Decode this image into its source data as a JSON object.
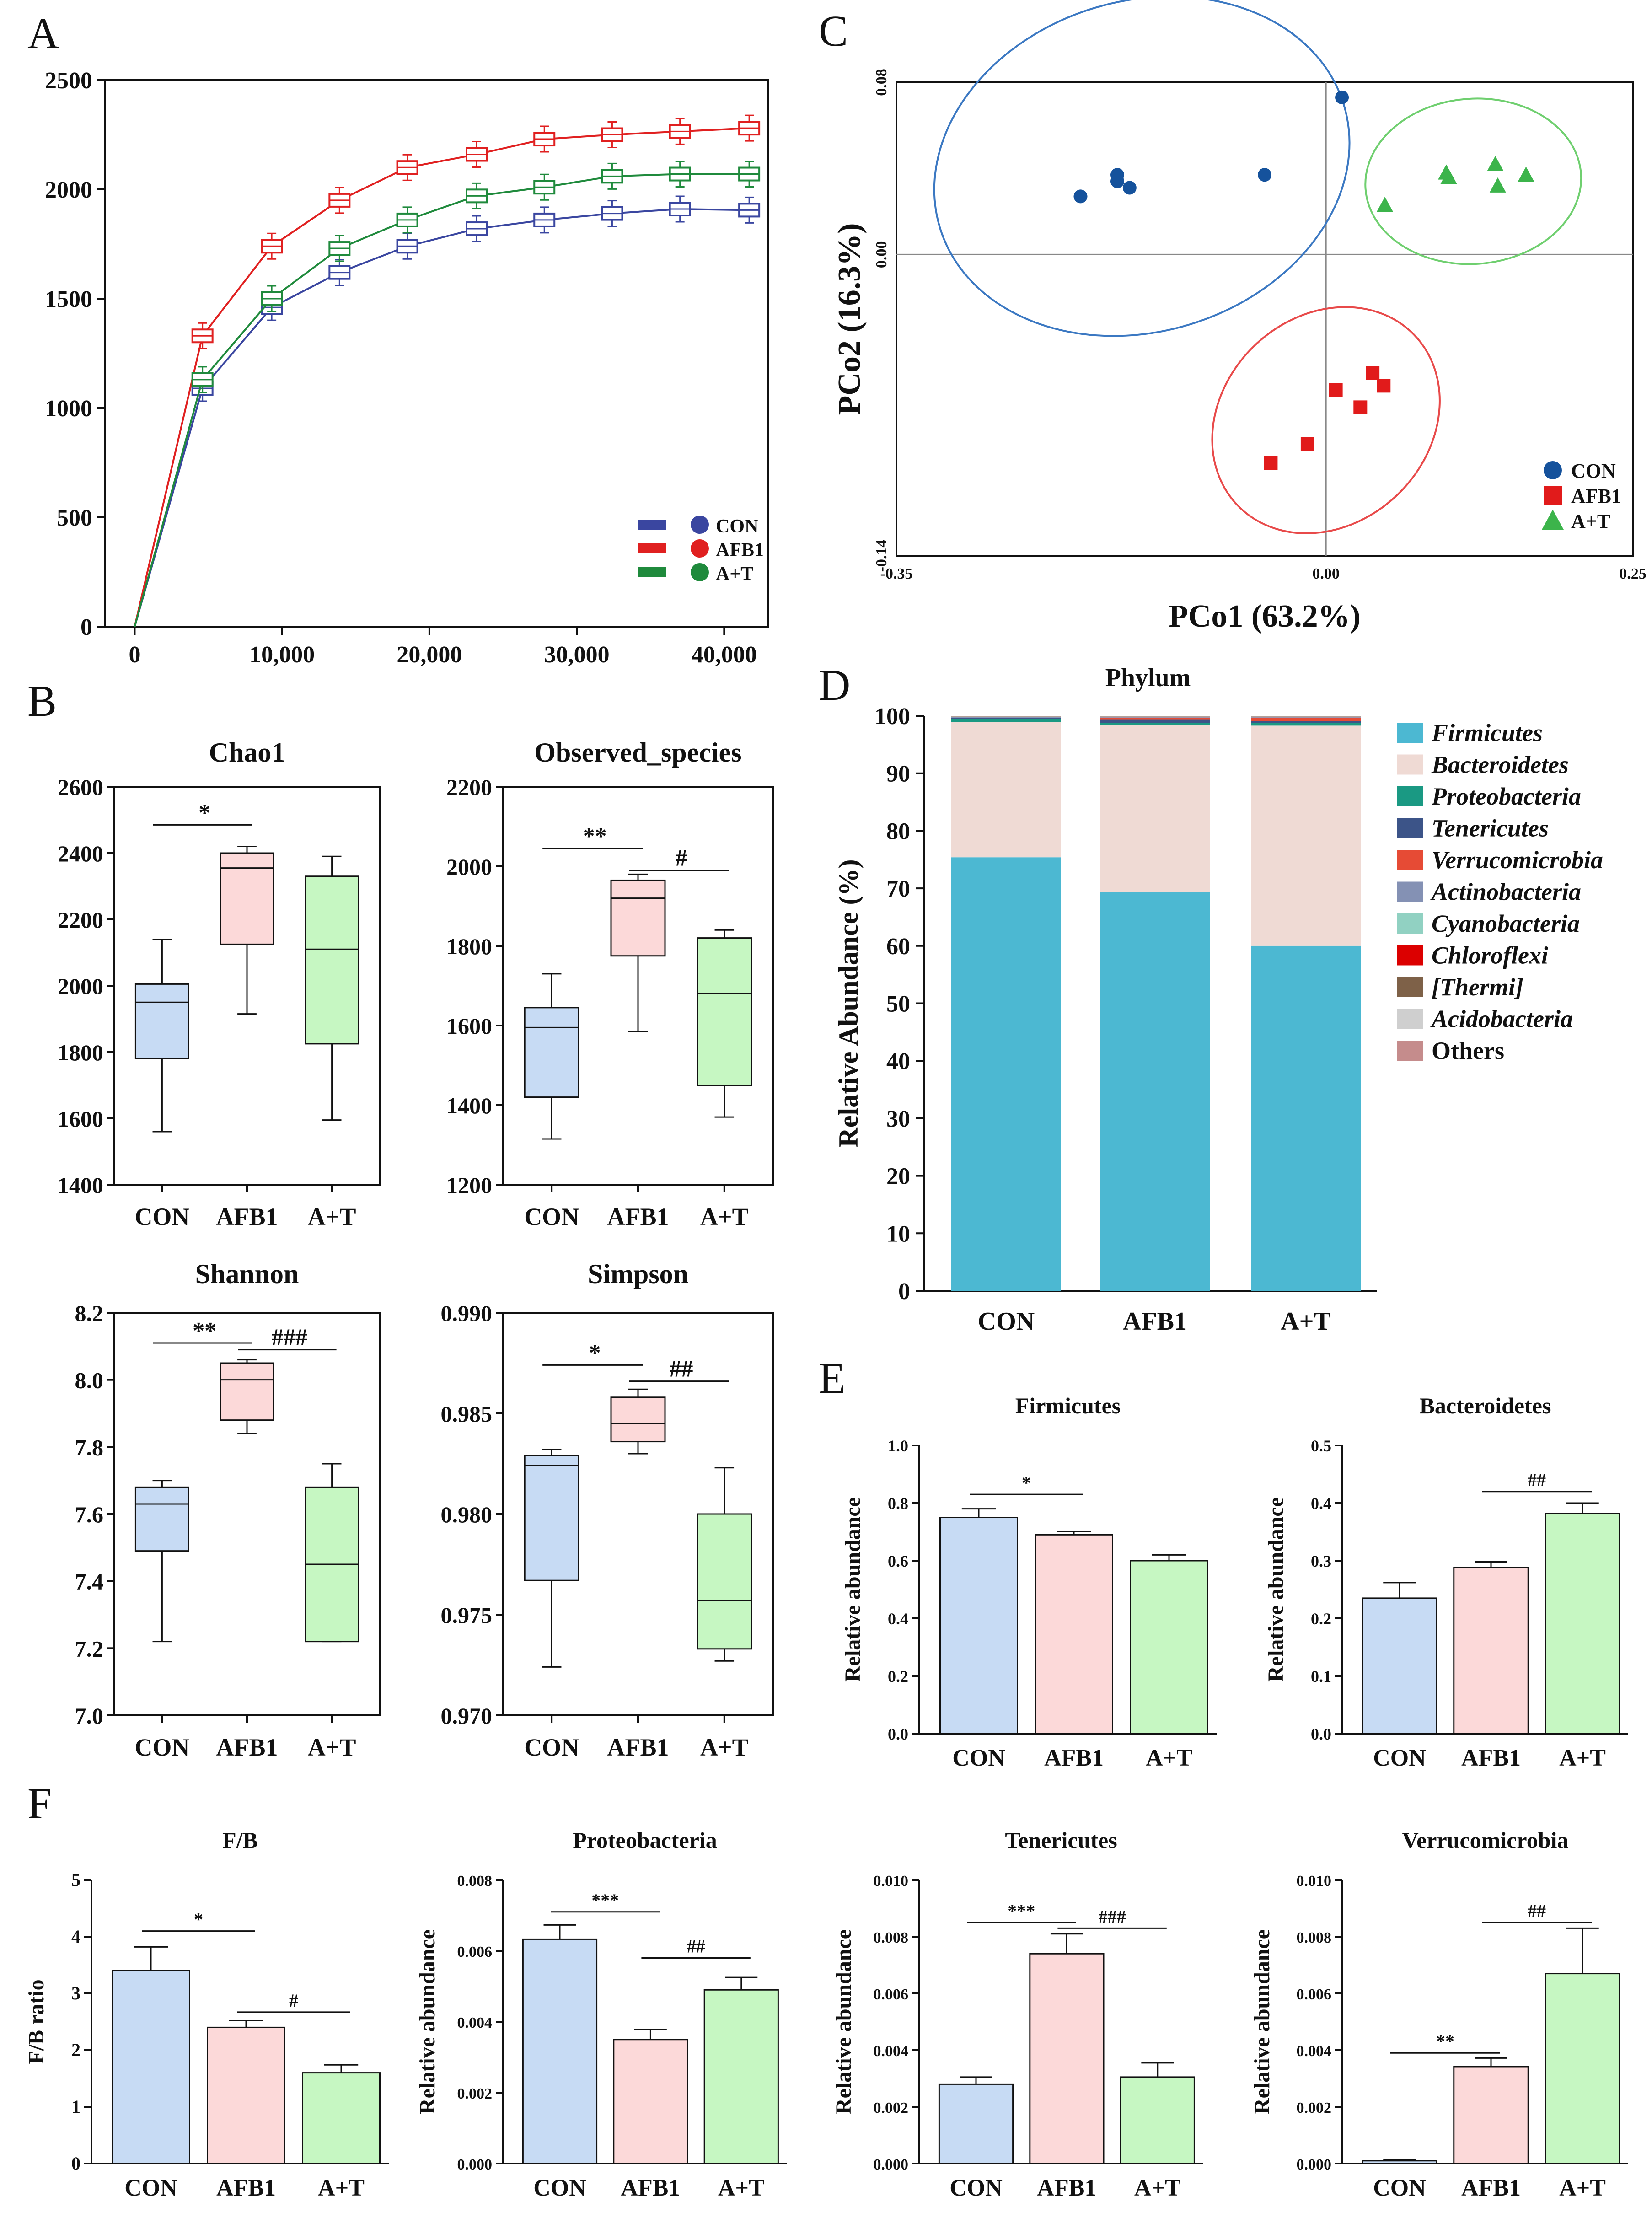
{
  "figure": {
    "panel_labels": [
      "A",
      "B",
      "C",
      "D",
      "E",
      "F"
    ],
    "groups": [
      "CON",
      "AFB1",
      "A+T"
    ],
    "colors": {
      "con_line": "#3a46a0",
      "afb1_line": "#e02020",
      "at_line": "#1f8a3c",
      "con_fill": "#c7dbf4",
      "afb1_fill": "#fcd9d9",
      "at_fill": "#c6f7c2",
      "con_pt": "#15529c",
      "afb1_pt": "#e11b1b",
      "at_pt": "#3cb44b"
    }
  },
  "chart_data": [
    {
      "id": "A",
      "type": "line",
      "title": "",
      "x": [
        0,
        4600,
        9300,
        13900,
        18500,
        23200,
        27800,
        32400,
        37000,
        41700
      ],
      "xticks": [
        "0",
        "10,000",
        "20,000",
        "30,000",
        "40,000"
      ],
      "xtick_values": [
        0,
        10000,
        20000,
        30000,
        40000
      ],
      "yticks": [
        "0",
        "500",
        "1000",
        "1500",
        "2000",
        "2500"
      ],
      "ylim": [
        0,
        2500
      ],
      "xlim": [
        -2000,
        43000
      ],
      "series": [
        {
          "name": "CON",
          "values": [
            0,
            1090,
            1460,
            1620,
            1740,
            1820,
            1860,
            1890,
            1910,
            1905
          ]
        },
        {
          "name": "AFB1",
          "values": [
            0,
            1330,
            1740,
            1950,
            2100,
            2160,
            2230,
            2250,
            2265,
            2280
          ]
        },
        {
          "name": "A+T",
          "values": [
            0,
            1130,
            1500,
            1730,
            1860,
            1970,
            2010,
            2060,
            2070,
            2070
          ]
        }
      ],
      "legend": [
        "CON",
        "AFB1",
        "A+T"
      ],
      "legend_position": "bottom-right"
    },
    {
      "id": "B1",
      "type": "box",
      "title": "Chao1",
      "categories": [
        "CON",
        "AFB1",
        "A+T"
      ],
      "yticks": [
        "1400",
        "1600",
        "1800",
        "2000",
        "2200",
        "2400",
        "2600"
      ],
      "ylim": [
        1400,
        2600
      ],
      "boxes": [
        {
          "min": 1560,
          "q1": 1780,
          "median": 1950,
          "q3": 2005,
          "max": 2140
        },
        {
          "min": 1915,
          "q1": 2125,
          "median": 2355,
          "q3": 2400,
          "max": 2420
        },
        {
          "min": 1595,
          "q1": 1825,
          "median": 2110,
          "q3": 2330,
          "max": 2390
        }
      ],
      "annotations": [
        {
          "label": "*",
          "from": 0,
          "to": 1,
          "y": 2485
        }
      ]
    },
    {
      "id": "B2",
      "type": "box",
      "title": "Observed_species",
      "categories": [
        "CON",
        "AFB1",
        "A+T"
      ],
      "yticks": [
        "1200",
        "1400",
        "1600",
        "1800",
        "2000",
        "2200"
      ],
      "ylim": [
        1200,
        2200
      ],
      "boxes": [
        {
          "min": 1315,
          "q1": 1420,
          "median": 1595,
          "q3": 1645,
          "max": 1730
        },
        {
          "min": 1585,
          "q1": 1775,
          "median": 1920,
          "q3": 1965,
          "max": 1980
        },
        {
          "min": 1370,
          "q1": 1450,
          "median": 1680,
          "q3": 1820,
          "max": 1840
        }
      ],
      "annotations": [
        {
          "label": "**",
          "from": 0,
          "to": 1,
          "y": 2045
        },
        {
          "label": "#",
          "from": 1,
          "to": 2,
          "y": 1990
        }
      ]
    },
    {
      "id": "B3",
      "type": "box",
      "title": "Shannon",
      "categories": [
        "CON",
        "AFB1",
        "A+T"
      ],
      "yticks": [
        "7.0",
        "7.2",
        "7.4",
        "7.6",
        "7.8",
        "8.0",
        "8.2"
      ],
      "ylim": [
        7.0,
        8.2
      ],
      "boxes": [
        {
          "min": 7.22,
          "q1": 7.49,
          "median": 7.63,
          "q3": 7.68,
          "max": 7.7
        },
        {
          "min": 7.84,
          "q1": 7.88,
          "median": 8.0,
          "q3": 8.05,
          "max": 8.06
        },
        {
          "min": 7.22,
          "q1": 7.22,
          "median": 7.45,
          "q3": 7.68,
          "max": 7.75
        }
      ],
      "annotations": [
        {
          "label": "**",
          "from": 0,
          "to": 1,
          "y": 8.11
        },
        {
          "label": "###",
          "from": 1,
          "to": 2,
          "y": 8.09
        }
      ]
    },
    {
      "id": "B4",
      "type": "box",
      "title": "Simpson",
      "categories": [
        "CON",
        "AFB1",
        "A+T"
      ],
      "yticks": [
        "0.970",
        "0.975",
        "0.980",
        "0.985",
        "0.990"
      ],
      "ylim": [
        0.97,
        0.99
      ],
      "boxes": [
        {
          "min": 0.9724,
          "q1": 0.9767,
          "median": 0.9824,
          "q3": 0.9829,
          "max": 0.9832
        },
        {
          "min": 0.983,
          "q1": 0.9836,
          "median": 0.9845,
          "q3": 0.9858,
          "max": 0.9862
        },
        {
          "min": 0.9727,
          "q1": 0.9733,
          "median": 0.9757,
          "q3": 0.98,
          "max": 0.9823
        }
      ],
      "annotations": [
        {
          "label": "*",
          "from": 0,
          "to": 1,
          "y": 0.9874
        },
        {
          "label": "##",
          "from": 1,
          "to": 2,
          "y": 0.9866
        }
      ]
    },
    {
      "id": "C",
      "type": "scatter",
      "title": "",
      "xlabel": "PCo1 (63.2%)",
      "ylabel": "PCo2 (16.3%)",
      "xlim": [
        -0.35,
        0.25
      ],
      "ylim": [
        -0.14,
        0.08
      ],
      "xticks": [
        "-0.35",
        "0.00",
        "0.25"
      ],
      "yticks": [
        "-0.14",
        "0.00",
        "0.08"
      ],
      "series": [
        {
          "name": "CON",
          "marker": "circle",
          "points": [
            [
              -0.2,
              0.027
            ],
            [
              -0.17,
              0.037
            ],
            [
              -0.17,
              0.034
            ],
            [
              -0.16,
              0.031
            ],
            [
              -0.05,
              0.037
            ],
            [
              0.013,
              0.073
            ]
          ]
        },
        {
          "name": "AFB1",
          "marker": "square",
          "points": [
            [
              -0.045,
              -0.097
            ],
            [
              -0.015,
              -0.088
            ],
            [
              0.008,
              -0.063
            ],
            [
              0.028,
              -0.071
            ],
            [
              0.038,
              -0.055
            ],
            [
              0.047,
              -0.061
            ]
          ]
        },
        {
          "name": "A+T",
          "marker": "triangle",
          "points": [
            [
              0.048,
              0.023
            ],
            [
              0.098,
              0.038
            ],
            [
              0.1,
              0.036
            ],
            [
              0.138,
              0.042
            ],
            [
              0.14,
              0.032
            ],
            [
              0.163,
              0.037
            ]
          ]
        }
      ],
      "legend": [
        "CON",
        "AFB1",
        "A+T"
      ],
      "legend_position": "bottom-right"
    },
    {
      "id": "D",
      "type": "stacked-bar",
      "title": "Phylum",
      "ylabel": "Relative Abundance (%)",
      "categories": [
        "CON",
        "AFB1",
        "A+T"
      ],
      "yticks": [
        "0",
        "10",
        "20",
        "30",
        "40",
        "50",
        "60",
        "70",
        "80",
        "90",
        "100"
      ],
      "ylim": [
        0,
        100
      ],
      "series": [
        {
          "name": "Firmicutes",
          "color": "#4cb8d2",
          "values": [
            75.4,
            69.3,
            60.0
          ]
        },
        {
          "name": "Bacteroidetes",
          "color": "#efdad4",
          "values": [
            23.5,
            29.1,
            38.3
          ]
        },
        {
          "name": "Proteobacteria",
          "color": "#1a9983",
          "values": [
            0.6,
            0.4,
            0.5
          ]
        },
        {
          "name": "Tenericutes",
          "color": "#3c5488",
          "values": [
            0.2,
            0.6,
            0.3
          ]
        },
        {
          "name": "Verrucomicrobia",
          "color": "#e64b35",
          "values": [
            0.0,
            0.3,
            0.6
          ]
        },
        {
          "name": "Actinobacteria",
          "color": "#8491b4",
          "values": [
            0.1,
            0.1,
            0.1
          ]
        },
        {
          "name": "Cyanobacteria",
          "color": "#91d1c2",
          "values": [
            0.1,
            0.1,
            0.1
          ]
        },
        {
          "name": "Chloroflexi",
          "color": "#dc0000",
          "values": [
            0.05,
            0.05,
            0.05
          ]
        },
        {
          "name": "[Thermi]",
          "color": "#7e6148",
          "values": [
            0.02,
            0.02,
            0.02
          ]
        },
        {
          "name": "Acidobacteria",
          "color": "#cfcfcf",
          "values": [
            0.02,
            0.02,
            0.02
          ]
        },
        {
          "name": "Others",
          "color": "#c58c8c",
          "values": [
            0.01,
            0.01,
            0.01
          ]
        }
      ],
      "legend_position": "right"
    },
    {
      "id": "E1",
      "type": "bar",
      "title": "Firmicutes",
      "ylabel": "Relative abundance",
      "categories": [
        "CON",
        "AFB1",
        "A+T"
      ],
      "values": [
        0.75,
        0.69,
        0.6
      ],
      "errors": [
        0.03,
        0.012,
        0.02
      ],
      "yticks": [
        "0.0",
        "0.2",
        "0.4",
        "0.6",
        "0.8",
        "1.0"
      ],
      "ylim": [
        0,
        1.0
      ],
      "annotations": [
        {
          "label": "*",
          "from": 0,
          "to": 1,
          "y": 0.83
        }
      ]
    },
    {
      "id": "E2",
      "type": "bar",
      "title": "Bacteroidetes",
      "ylabel": "Relative abundance",
      "categories": [
        "CON",
        "AFB1",
        "A+T"
      ],
      "values": [
        0.235,
        0.288,
        0.382
      ],
      "errors": [
        0.027,
        0.01,
        0.018
      ],
      "yticks": [
        "0.0",
        "0.1",
        "0.2",
        "0.3",
        "0.4",
        "0.5"
      ],
      "ylim": [
        0,
        0.5
      ],
      "annotations": [
        {
          "label": "##",
          "from": 1,
          "to": 2,
          "y": 0.42
        }
      ]
    },
    {
      "id": "F1",
      "type": "bar",
      "title": "F/B",
      "ylabel": "F/B ratio",
      "categories": [
        "CON",
        "AFB1",
        "A+T"
      ],
      "values": [
        3.4,
        2.4,
        1.6
      ],
      "errors": [
        0.42,
        0.12,
        0.14
      ],
      "yticks": [
        "0",
        "1",
        "2",
        "3",
        "4",
        "5"
      ],
      "ylim": [
        0,
        5
      ],
      "annotations": [
        {
          "label": "*",
          "from": 0,
          "to": 1,
          "y": 4.1
        },
        {
          "label": "#",
          "from": 1,
          "to": 2,
          "y": 2.67
        }
      ]
    },
    {
      "id": "F2",
      "type": "bar",
      "title": "Proteobacteria",
      "ylabel": "Relative abundance",
      "categories": [
        "CON",
        "AFB1",
        "A+T"
      ],
      "values": [
        0.00633,
        0.0035,
        0.0049
      ],
      "errors": [
        0.0004,
        0.00028,
        0.00035
      ],
      "yticks": [
        "0.000",
        "0.002",
        "0.004",
        "0.006",
        "0.008"
      ],
      "ylim": [
        0,
        0.008
      ],
      "annotations": [
        {
          "label": "***",
          "from": 0,
          "to": 1,
          "y": 0.0071
        },
        {
          "label": "##",
          "from": 1,
          "to": 2,
          "y": 0.0058
        }
      ]
    },
    {
      "id": "F3",
      "type": "bar",
      "title": "Tenericutes",
      "ylabel": "Relative abundance",
      "categories": [
        "CON",
        "AFB1",
        "A+T"
      ],
      "values": [
        0.0028,
        0.0074,
        0.00305
      ],
      "errors": [
        0.00025,
        0.0007,
        0.0005
      ],
      "yticks": [
        "0.000",
        "0.002",
        "0.004",
        "0.006",
        "0.008",
        "0.010"
      ],
      "ylim": [
        0,
        0.01
      ],
      "annotations": [
        {
          "label": "***",
          "from": 0,
          "to": 1,
          "y": 0.0085
        },
        {
          "label": "###",
          "from": 1,
          "to": 2,
          "y": 0.0083
        }
      ]
    },
    {
      "id": "F4",
      "type": "bar",
      "title": "Verrucomicrobia",
      "ylabel": "Relative abundance",
      "categories": [
        "CON",
        "AFB1",
        "A+T"
      ],
      "values": [
        0.0001,
        0.00342,
        0.0067
      ],
      "errors": [
        3e-05,
        0.0003,
        0.0016
      ],
      "yticks": [
        "0.000",
        "0.002",
        "0.004",
        "0.006",
        "0.008",
        "0.010"
      ],
      "ylim": [
        0,
        0.01
      ],
      "annotations": [
        {
          "label": "**",
          "from": 0,
          "to": 1,
          "y": 0.0039
        },
        {
          "label": "##",
          "from": 1,
          "to": 2,
          "y": 0.0085
        }
      ]
    }
  ]
}
